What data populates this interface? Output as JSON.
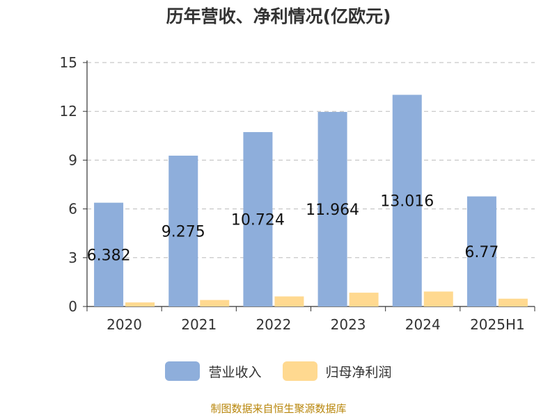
{
  "chart_data": {
    "type": "bar",
    "title": "历年营收、净利情况(亿欧元)",
    "categories": [
      "2020",
      "2021",
      "2022",
      "2023",
      "2024",
      "2025H1"
    ],
    "series": [
      {
        "name": "营业收入",
        "values": [
          6.382,
          9.275,
          10.724,
          11.964,
          13.016,
          6.77
        ],
        "data_labels": [
          "6.382",
          "9.275",
          "10.724",
          "11.964",
          "13.016",
          "6.77"
        ],
        "color": "#8eaedb"
      },
      {
        "name": "归母净利润",
        "values": [
          0.25,
          0.4,
          0.62,
          0.85,
          0.92,
          0.48
        ],
        "color": "#ffd990"
      }
    ],
    "yticks": [
      "0",
      "3",
      "6",
      "9",
      "12",
      "15"
    ],
    "ylim": [
      0,
      15
    ],
    "grid": true,
    "legend_position": "bottom"
  },
  "footer": {
    "source": "制图数据来自恒生聚源数据库"
  }
}
